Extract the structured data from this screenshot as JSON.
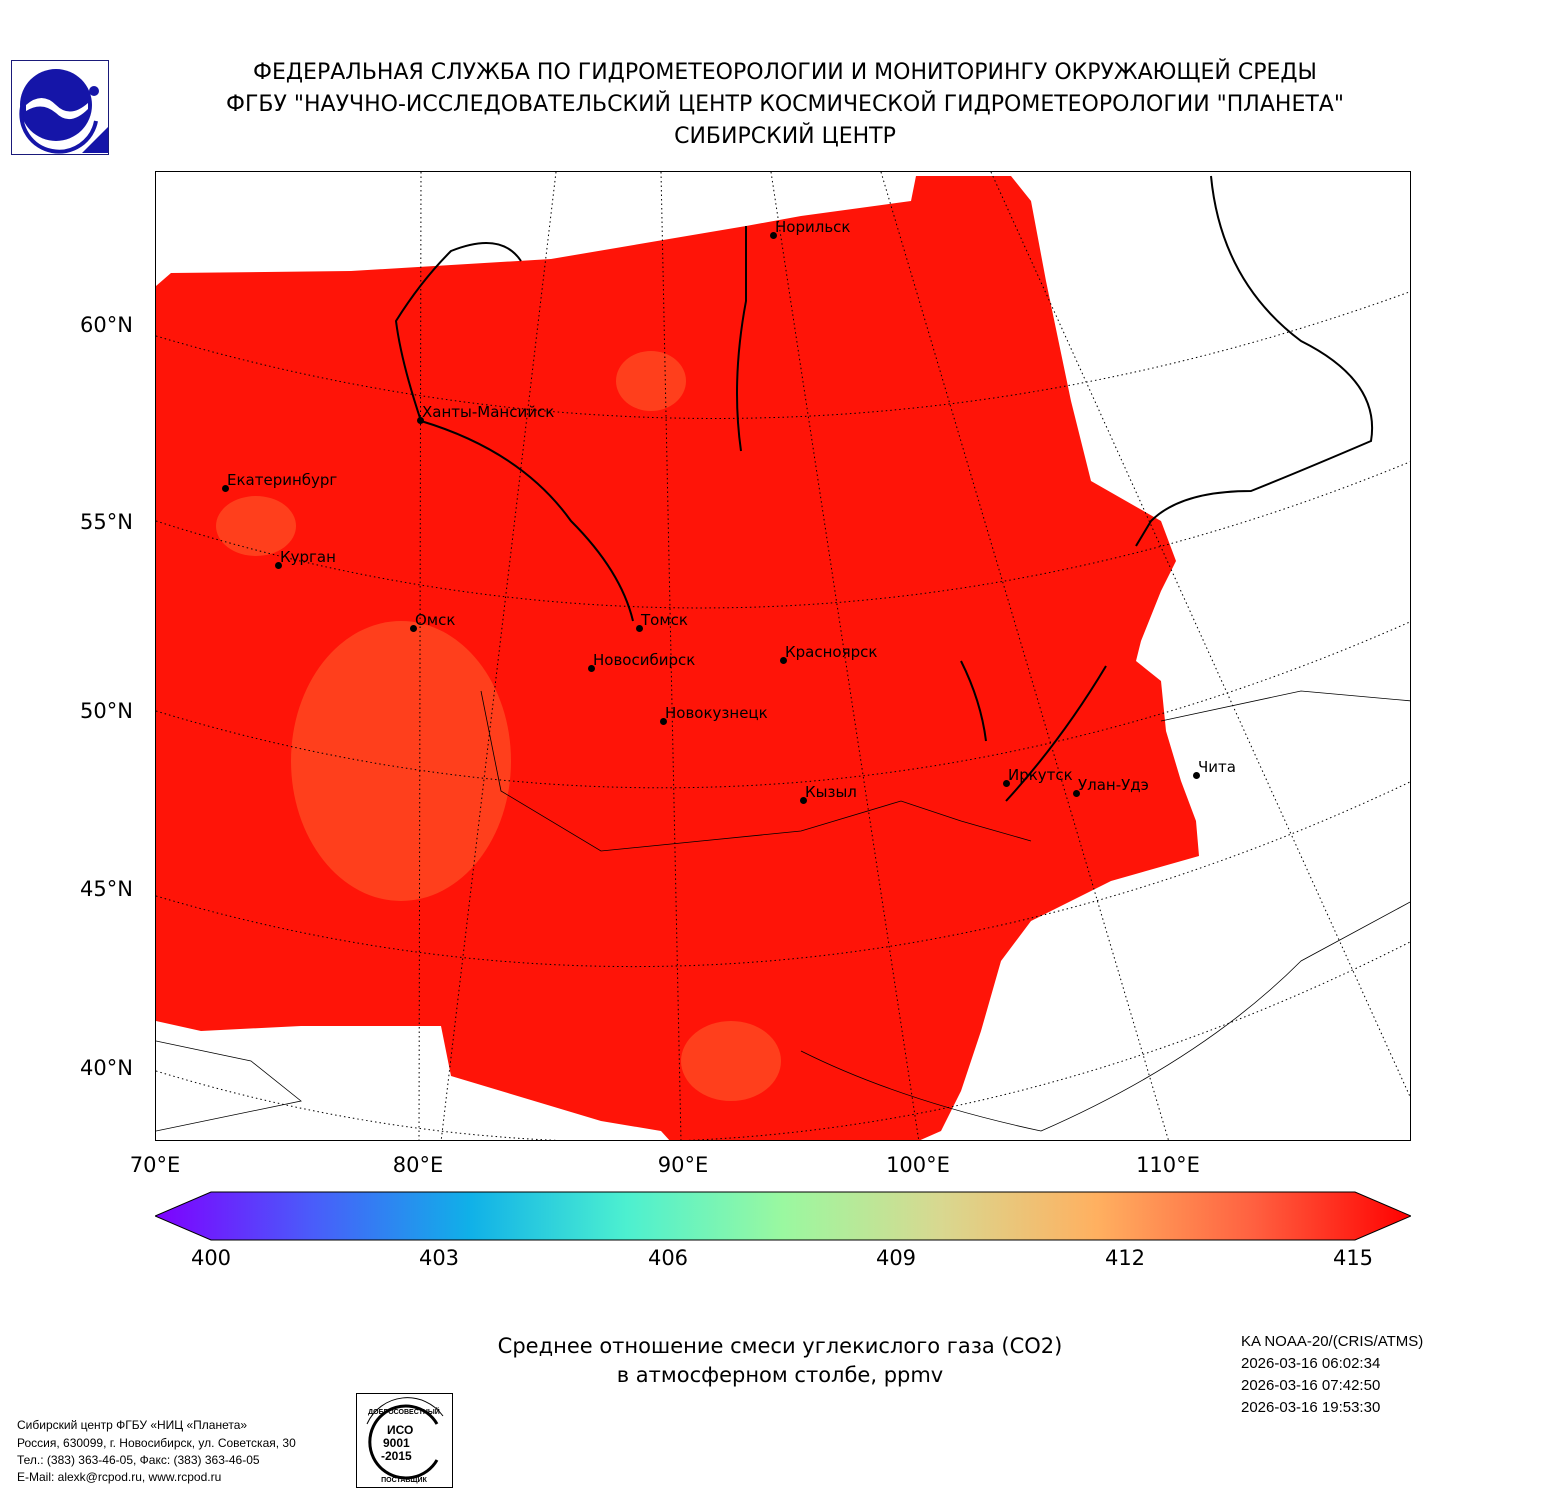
{
  "header": {
    "line1": "ФЕДЕРАЛЬНАЯ СЛУЖБА ПО ГИДРОМЕТЕОРОЛОГИИ И МОНИТОРИНГУ ОКРУЖАЮЩЕЙ СРЕДЫ",
    "line2": "ФГБУ \"НАУЧНО-ИССЛЕДОВАТЕЛЬСКИЙ ЦЕНТР КОСМИЧЕСКОЙ ГИДРОМЕТЕОРОЛОГИИ \"ПЛАНЕТА\"",
    "line3": "СИБИРСКИЙ ЦЕНТР"
  },
  "map": {
    "lat_labels": [
      "60°N",
      "55°N",
      "50°N",
      "45°N",
      "40°N"
    ],
    "lon_labels": [
      "70°E",
      "80°E",
      "90°E",
      "100°E",
      "110°E"
    ],
    "cities": [
      {
        "name": "Норильск"
      },
      {
        "name": "Ханты-Мансийск"
      },
      {
        "name": "Екатеринбург"
      },
      {
        "name": "Курган"
      },
      {
        "name": "Омск"
      },
      {
        "name": "Томск"
      },
      {
        "name": "Новосибирск"
      },
      {
        "name": "Красноярск"
      },
      {
        "name": "Новокузнецк"
      },
      {
        "name": "Кызыл"
      },
      {
        "name": "Иркутск"
      },
      {
        "name": "Улан-Удэ"
      },
      {
        "name": "Чита"
      }
    ],
    "field_color": "#ff1a0a"
  },
  "colorbar": {
    "ticks": [
      "400",
      "403",
      "406",
      "409",
      "412",
      "415"
    ],
    "min": 400,
    "max": 415,
    "colors": [
      "#7f00ff",
      "#4a5cfa",
      "#10b0e8",
      "#4cf0d0",
      "#9af8a0",
      "#d8d890",
      "#ffb060",
      "#ff6040",
      "#ff0000"
    ]
  },
  "title": {
    "line1": "Среднее отношение смеси углекислого газа (CO2)",
    "line2": "в атмосферном столбе, ppmv"
  },
  "satellite": {
    "name": "KA NOAA-20/(CRIS/ATMS)",
    "times": [
      "2026-03-16 06:02:34",
      "2026-03-16 07:42:50",
      "2026-03-16 19:53:30"
    ]
  },
  "footer": {
    "lines": [
      "Сибирский центр ФГБУ «НИЦ «Планета»",
      "Россия, 630099, г. Новосибирск, ул. Советская, 30",
      "Тел.: (383) 363-46-05, Факс: (383) 363-46-05",
      "E-Mail: alexk@rcpod.ru, www.rcpod.ru"
    ]
  },
  "iso_stamp": {
    "top": "ДОБРОСОВЕСТНЫЙ",
    "middle": "ИСО 9001 -2015",
    "bottom": "ПОСТАВЩИК"
  }
}
